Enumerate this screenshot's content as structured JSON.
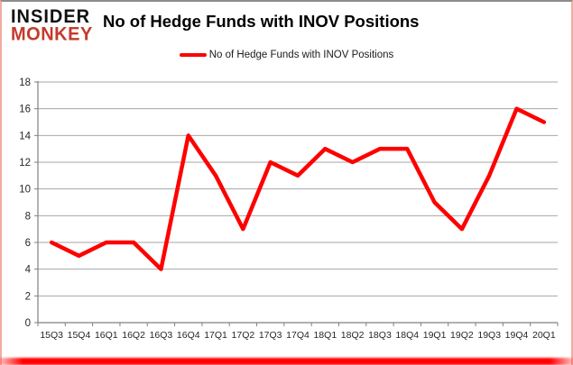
{
  "logo": {
    "line1": "INSIDER",
    "line2": "MONKEY"
  },
  "header": {
    "title": "No of Hedge Funds with INOV Positions"
  },
  "legend": {
    "label": "No of Hedge Funds with INOV Positions",
    "swatch_color": "#FF0000"
  },
  "chart_data": {
    "type": "line",
    "title": "No of Hedge Funds with INOV Positions",
    "series_name": "No of Hedge Funds with INOV Positions",
    "categories": [
      "15Q3",
      "15Q4",
      "16Q1",
      "16Q2",
      "16Q3",
      "16Q4",
      "17Q1",
      "17Q2",
      "17Q3",
      "17Q4",
      "18Q1",
      "18Q2",
      "18Q3",
      "18Q4",
      "19Q1",
      "19Q2",
      "19Q3",
      "19Q4",
      "20Q1"
    ],
    "values": [
      6,
      5,
      6,
      6,
      4,
      14,
      11,
      7,
      12,
      11,
      13,
      12,
      13,
      13,
      9,
      7,
      11,
      16,
      15
    ],
    "xlabel": "",
    "ylabel": "",
    "ylim": [
      0,
      18
    ],
    "ytick_step": 2,
    "grid": true,
    "legend_position": "top",
    "line_color": "#FF0000",
    "grid_color": "#a6a6a6",
    "axis_color": "#808080",
    "tick_label_color": "#262626"
  },
  "colors": {
    "background": "#FFFFFF",
    "logo_black": "#111111",
    "logo_red": "#C53A2B",
    "frame_top": "#8C8C8C",
    "frame_sides": "#F2ABA4",
    "frame_bottom": "#FF0000"
  }
}
